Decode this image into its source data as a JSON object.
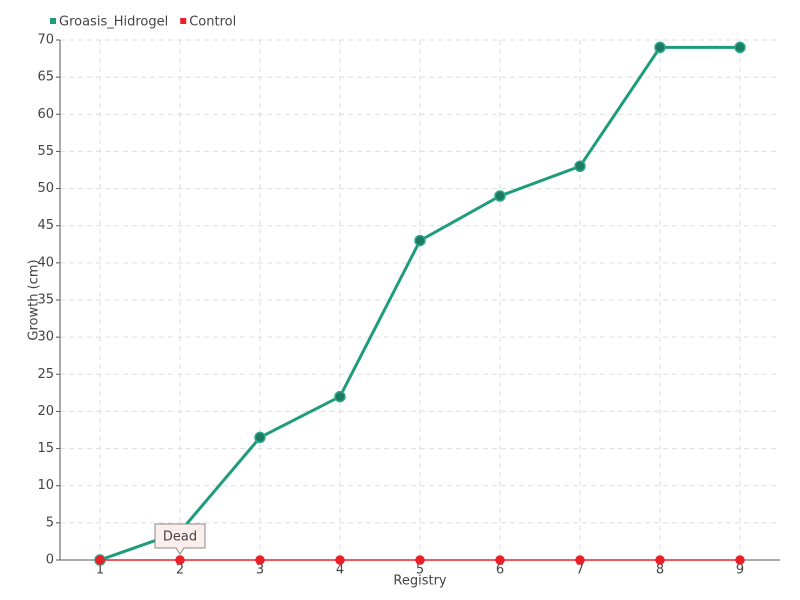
{
  "chart_data": {
    "type": "line",
    "categories": [
      "1",
      "2",
      "3",
      "4",
      "5",
      "6",
      "7",
      "8",
      "9"
    ],
    "series": [
      {
        "name": "Groasis_Hidrogel",
        "color": "#1e9c7c",
        "values": [
          0,
          3.8,
          16.5,
          22,
          43,
          49,
          53,
          69,
          69
        ]
      },
      {
        "name": "Control",
        "color": "#e8202a",
        "values": [
          0,
          0,
          0,
          0,
          0,
          0,
          0,
          0,
          0
        ]
      }
    ],
    "xlabel": "Registry",
    "ylabel": "Growth (cm)",
    "ylim": [
      0,
      70
    ],
    "yticks": [
      0,
      5,
      10,
      15,
      20,
      25,
      30,
      35,
      40,
      45,
      50,
      55,
      60,
      65,
      70
    ],
    "grid": true,
    "legend": "top-left",
    "annotation": "Dead"
  }
}
